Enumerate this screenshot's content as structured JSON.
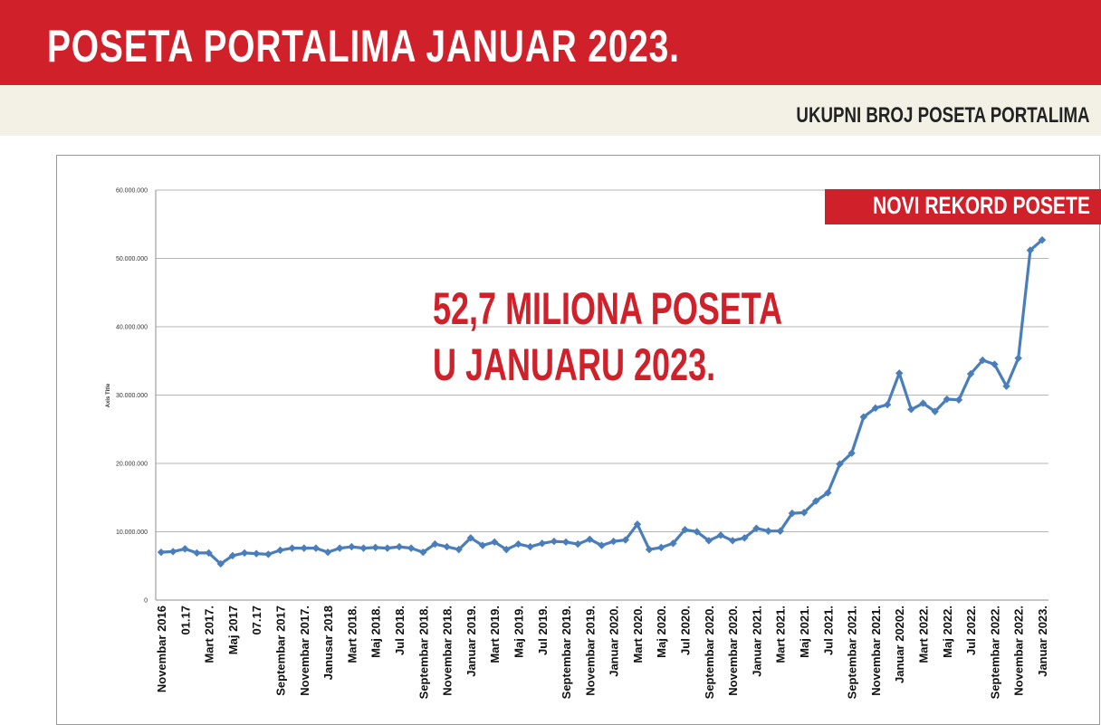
{
  "header": {
    "title": "POSETA PORTALIMA JANUAR 2023.",
    "subtitle": "UKUPNI BROJ POSETA PORTALIMA"
  },
  "badge": {
    "text": "NOVI REKORD POSETE"
  },
  "callout": {
    "line1": "52,7 MILIONA POSETA",
    "line2": "U JANUARU 2023."
  },
  "colors": {
    "brand_red": "#d0202a",
    "line": "#4a7ebb",
    "band": "#f3f1e6"
  },
  "chart_data": {
    "type": "line",
    "ylabel": "Axis Title",
    "ylim": [
      0,
      60000000
    ],
    "yticks": [
      "0",
      "10.000.000",
      "20.000.000",
      "30.000.000",
      "40.000.000",
      "50.000.000",
      "60.000.000"
    ],
    "grid": true,
    "x_labels": [
      "Novembar 2016",
      "01.17",
      "Mart 2017.",
      "Maj 2017",
      "07.17",
      "Septembar 2017",
      "Novembar 2017.",
      "Janusar 2018",
      "Mart 2018.",
      "Maj 2018.",
      "Jul 2018.",
      "Septembar 2018.",
      "Novembar 2018.",
      "Januar 2019.",
      "Mart 2019.",
      "Maj 2019.",
      "Jul 2019.",
      "Septembar 2019.",
      "Novembar 2019.",
      "Januar 2020.",
      "Mart 2020.",
      "Maj 2020.",
      "Jul 2020.",
      "Septembar 2020.",
      "Novembar 2020.",
      "Januar 2021.",
      "Mart 2021.",
      "Maj 2021.",
      "Jul 2021.",
      "Septembar 2021.",
      "Novembar 2021.",
      "Januar 20202.",
      "Mart 2022.",
      "Maj 2022.",
      "Jul 2022.",
      "Septembar 2022.",
      "Novembar 2022.",
      "Januar 2023."
    ],
    "series": [
      {
        "values": [
          7000000,
          7100000,
          7500000,
          6900000,
          6900000,
          5300000,
          6500000,
          6900000,
          6800000,
          6700000,
          7300000,
          7600000,
          7600000,
          7600000,
          7000000,
          7600000,
          7800000,
          7600000,
          7700000,
          7600000,
          7800000,
          7600000,
          7000000,
          8200000,
          7800000,
          7400000,
          9100000,
          8000000,
          8500000,
          7400000,
          8200000,
          7800000,
          8300000,
          8600000,
          8500000,
          8200000,
          8900000,
          8000000,
          8600000,
          8800000,
          11100000,
          7400000,
          7700000,
          8300000,
          10300000,
          10000000,
          8700000,
          9500000,
          8700000,
          9100000,
          10500000,
          10100000,
          10100000,
          12700000,
          12800000,
          14500000,
          15700000,
          19900000,
          21500000,
          26800000,
          28100000,
          28600000,
          33200000,
          27900000,
          28800000,
          27600000,
          29400000,
          29300000,
          33100000,
          35100000,
          34500000,
          31300000,
          35400000,
          51200000,
          52700000
        ]
      }
    ]
  }
}
